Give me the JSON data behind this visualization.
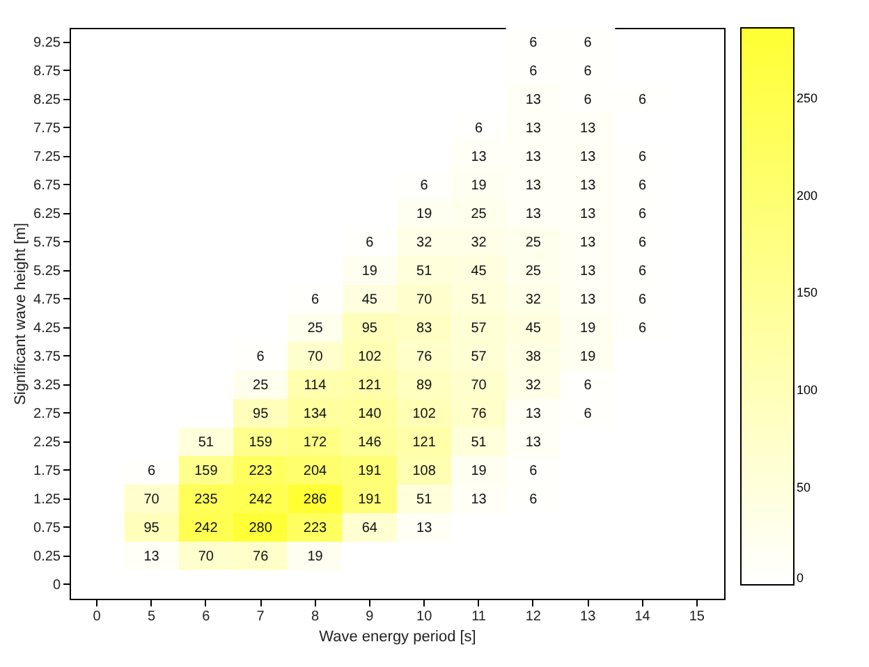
{
  "chart_data": {
    "type": "heatmap",
    "xlabel": "Wave energy period [s]",
    "ylabel": "Significant wave height [m]",
    "categories": [
      "0",
      "5",
      "6",
      "7",
      "8",
      "9",
      "10",
      "11",
      "12",
      "13",
      "14",
      "15"
    ],
    "y_categories": [
      "9.25",
      "8.75",
      "8.25",
      "7.75",
      "7.25",
      "6.75",
      "6.25",
      "5.75",
      "5.25",
      "4.75",
      "4.25",
      "3.75",
      "3.25",
      "2.75",
      "2.25",
      "1.75",
      "1.25",
      "0.75",
      "0.25",
      "0"
    ],
    "cells": [
      [
        null,
        null,
        null,
        null,
        null,
        null,
        null,
        null,
        6,
        6,
        null,
        null
      ],
      [
        null,
        null,
        null,
        null,
        null,
        null,
        null,
        null,
        6,
        6,
        null,
        null
      ],
      [
        null,
        null,
        null,
        null,
        null,
        null,
        null,
        null,
        13,
        6,
        6,
        null
      ],
      [
        null,
        null,
        null,
        null,
        null,
        null,
        null,
        6,
        13,
        13,
        null,
        null
      ],
      [
        null,
        null,
        null,
        null,
        null,
        null,
        null,
        13,
        13,
        13,
        6,
        null
      ],
      [
        null,
        null,
        null,
        null,
        null,
        null,
        6,
        19,
        13,
        13,
        6,
        null
      ],
      [
        null,
        null,
        null,
        null,
        null,
        null,
        19,
        25,
        13,
        13,
        6,
        null
      ],
      [
        null,
        null,
        null,
        null,
        null,
        6,
        32,
        32,
        25,
        13,
        6,
        null
      ],
      [
        null,
        null,
        null,
        null,
        null,
        19,
        51,
        45,
        25,
        13,
        6,
        null
      ],
      [
        null,
        null,
        null,
        null,
        6,
        45,
        70,
        51,
        32,
        13,
        6,
        null
      ],
      [
        null,
        null,
        null,
        null,
        25,
        95,
        83,
        57,
        45,
        19,
        6,
        null
      ],
      [
        null,
        null,
        null,
        6,
        70,
        102,
        76,
        57,
        38,
        19,
        null,
        null
      ],
      [
        null,
        null,
        null,
        25,
        114,
        121,
        89,
        70,
        32,
        6,
        null,
        null
      ],
      [
        null,
        null,
        null,
        95,
        134,
        140,
        102,
        76,
        13,
        6,
        null,
        null
      ],
      [
        null,
        null,
        51,
        159,
        172,
        146,
        121,
        51,
        13,
        null,
        null,
        null
      ],
      [
        null,
        6,
        159,
        223,
        204,
        191,
        108,
        19,
        6,
        null,
        null,
        null
      ],
      [
        null,
        70,
        235,
        242,
        286,
        191,
        51,
        13,
        6,
        null,
        null,
        null
      ],
      [
        null,
        95,
        242,
        280,
        223,
        64,
        13,
        null,
        null,
        null,
        null,
        null
      ],
      [
        null,
        13,
        70,
        76,
        19,
        null,
        null,
        null,
        null,
        null,
        null,
        null
      ],
      [
        null,
        null,
        null,
        null,
        null,
        null,
        null,
        null,
        null,
        null,
        null,
        null
      ]
    ],
    "clim": [
      0,
      286
    ],
    "cticks": [
      0,
      50,
      100,
      150,
      200,
      250
    ],
    "colors": [
      "#ffffff",
      "#ffff33"
    ],
    "data_labels": true,
    "grid": false
  }
}
